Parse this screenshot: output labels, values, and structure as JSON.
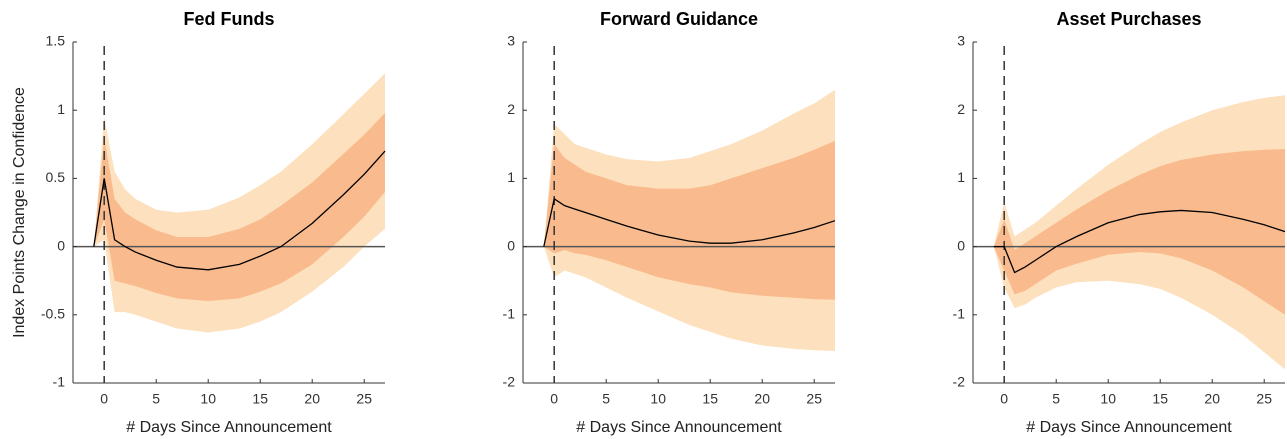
{
  "chart_data": [
    {
      "type": "line",
      "title": "Fed Funds",
      "xlabel": "# Days Since Announcement",
      "ylabel": "Index Points Change in Confidence",
      "x": [
        -1,
        0,
        1,
        2,
        3,
        5,
        7,
        10,
        13,
        15,
        17,
        20,
        23,
        25,
        27
      ],
      "series": [
        {
          "color": "#000000",
          "values": [
            0,
            0.5,
            0.05,
            0.0,
            -0.04,
            -0.1,
            -0.15,
            -0.17,
            -0.13,
            -0.07,
            0,
            0.17,
            0.38,
            0.53,
            0.7
          ]
        }
      ],
      "bands": [
        {
          "color": "#fde0bd",
          "upper": [
            0,
            0.95,
            0.55,
            0.42,
            0.35,
            0.27,
            0.25,
            0.27,
            0.36,
            0.45,
            0.55,
            0.75,
            0.97,
            1.12,
            1.27
          ],
          "lower": [
            0,
            0.05,
            -0.48,
            -0.48,
            -0.5,
            -0.55,
            -0.6,
            -0.63,
            -0.6,
            -0.55,
            -0.48,
            -0.33,
            -0.15,
            0.0,
            0.13
          ]
        },
        {
          "color": "#f9bb8e",
          "upper": [
            0,
            0.8,
            0.35,
            0.25,
            0.2,
            0.12,
            0.07,
            0.07,
            0.13,
            0.2,
            0.3,
            0.47,
            0.68,
            0.82,
            0.98
          ],
          "lower": [
            0,
            0.2,
            -0.25,
            -0.27,
            -0.29,
            -0.34,
            -0.38,
            -0.4,
            -0.38,
            -0.33,
            -0.27,
            -0.13,
            0.07,
            0.22,
            0.4
          ]
        }
      ],
      "xlim": [
        -3,
        27
      ],
      "ylim": [
        -1,
        1.5
      ],
      "xticks": [
        0,
        5,
        10,
        15,
        20,
        25
      ],
      "yticks": [
        -1,
        -0.5,
        0,
        0.5,
        1,
        1.5
      ],
      "vline": 0,
      "hline": 0
    },
    {
      "type": "line",
      "title": "Forward Guidance",
      "xlabel": "# Days Since Announcement",
      "x": [
        -1,
        0,
        1,
        2,
        3,
        5,
        7,
        10,
        13,
        15,
        17,
        20,
        23,
        25,
        27
      ],
      "series": [
        {
          "color": "#000000",
          "values": [
            0,
            0.7,
            0.6,
            0.55,
            0.5,
            0.4,
            0.3,
            0.17,
            0.08,
            0.05,
            0.05,
            0.1,
            0.2,
            0.28,
            0.38
          ]
        }
      ],
      "bands": [
        {
          "color": "#fde0bd",
          "upper": [
            0,
            1.8,
            1.65,
            1.5,
            1.45,
            1.35,
            1.28,
            1.25,
            1.3,
            1.4,
            1.5,
            1.7,
            1.95,
            2.1,
            2.3
          ],
          "lower": [
            0,
            -0.45,
            -0.35,
            -0.4,
            -0.45,
            -0.6,
            -0.75,
            -0.95,
            -1.15,
            -1.25,
            -1.35,
            -1.45,
            -1.5,
            -1.52,
            -1.53
          ]
        },
        {
          "color": "#f9bb8e",
          "upper": [
            0,
            1.5,
            1.3,
            1.2,
            1.1,
            1.0,
            0.9,
            0.85,
            0.85,
            0.9,
            1.0,
            1.15,
            1.3,
            1.42,
            1.55
          ],
          "lower": [
            0,
            -0.1,
            -0.05,
            -0.1,
            -0.12,
            -0.2,
            -0.3,
            -0.45,
            -0.55,
            -0.6,
            -0.67,
            -0.72,
            -0.75,
            -0.77,
            -0.78
          ]
        }
      ],
      "xlim": [
        -3,
        27
      ],
      "ylim": [
        -2,
        3
      ],
      "xticks": [
        0,
        5,
        10,
        15,
        20,
        25
      ],
      "yticks": [
        -2,
        -1,
        0,
        1,
        2,
        3
      ],
      "vline": 0,
      "hline": 0
    },
    {
      "type": "line",
      "title": "Asset Purchases",
      "xlabel": "# Days Since Announcement",
      "x": [
        -1,
        0,
        1,
        2,
        3,
        5,
        7,
        10,
        13,
        15,
        17,
        20,
        23,
        25,
        27
      ],
      "series": [
        {
          "color": "#000000",
          "values": [
            0,
            0.0,
            -0.38,
            -0.3,
            -0.2,
            0.0,
            0.15,
            0.35,
            0.47,
            0.51,
            0.53,
            0.5,
            0.4,
            0.32,
            0.22
          ]
        }
      ],
      "bands": [
        {
          "color": "#fde0bd",
          "upper": [
            0,
            0.65,
            0.15,
            0.25,
            0.35,
            0.6,
            0.85,
            1.2,
            1.5,
            1.68,
            1.82,
            2.0,
            2.12,
            2.18,
            2.22
          ],
          "lower": [
            0,
            -0.6,
            -0.9,
            -0.85,
            -0.75,
            -0.6,
            -0.52,
            -0.5,
            -0.55,
            -0.62,
            -0.75,
            -1.0,
            -1.3,
            -1.55,
            -1.8
          ]
        },
        {
          "color": "#f9bb8e",
          "upper": [
            0,
            0.4,
            -0.05,
            0.05,
            0.15,
            0.35,
            0.55,
            0.82,
            1.05,
            1.18,
            1.27,
            1.35,
            1.4,
            1.42,
            1.43
          ],
          "lower": [
            0,
            -0.35,
            -0.7,
            -0.65,
            -0.55,
            -0.35,
            -0.25,
            -0.12,
            -0.08,
            -0.1,
            -0.17,
            -0.35,
            -0.6,
            -0.8,
            -1.0
          ]
        }
      ],
      "xlim": [
        -3,
        27
      ],
      "ylim": [
        -2,
        3
      ],
      "xticks": [
        0,
        5,
        10,
        15,
        20,
        25
      ],
      "yticks": [
        -2,
        -1,
        0,
        1,
        2,
        3
      ],
      "vline": 0,
      "hline": 0
    }
  ]
}
